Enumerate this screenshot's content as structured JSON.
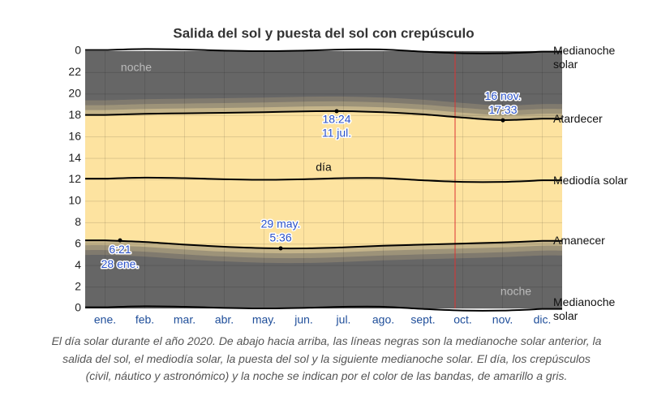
{
  "chart_data": {
    "type": "daylight",
    "title": "Salida del sol y puesta del sol con crepúsculo",
    "categories": [
      "ene.",
      "feb.",
      "mar.",
      "abr.",
      "may.",
      "jun.",
      "jul.",
      "ago.",
      "sept.",
      "oct.",
      "nov.",
      "dic."
    ],
    "ylim": [
      0,
      24
    ],
    "yticks": [
      0,
      2,
      4,
      6,
      8,
      10,
      12,
      14,
      16,
      18,
      20,
      22,
      {
        "value": 24,
        "label": "0"
      }
    ],
    "grid": true,
    "series": [
      {
        "name": "Medianoche solar",
        "color": "#000000",
        "values": [
          24.1,
          24.2,
          24.15,
          24.05,
          24.0,
          24.05,
          24.15,
          24.15,
          23.95,
          23.8,
          23.8,
          23.95
        ]
      },
      {
        "name": "Atardecer",
        "color": "#000000",
        "values": [
          18.05,
          18.15,
          18.2,
          18.25,
          18.3,
          18.38,
          18.4,
          18.3,
          18.1,
          17.8,
          17.57,
          17.7
        ]
      },
      {
        "name": "Mediodía solar",
        "color": "#000000",
        "values": [
          12.1,
          12.2,
          12.15,
          12.05,
          12.0,
          12.05,
          12.15,
          12.15,
          11.95,
          11.8,
          11.8,
          11.95
        ]
      },
      {
        "name": "Amanecer",
        "color": "#000000",
        "values": [
          6.35,
          6.2,
          5.95,
          5.75,
          5.62,
          5.6,
          5.7,
          5.85,
          5.95,
          6.05,
          6.15,
          6.3
        ]
      },
      {
        "name": "Medianoche solar",
        "color": "#000000",
        "values": [
          0.1,
          0.2,
          0.15,
          0.05,
          0.0,
          0.05,
          0.15,
          0.15,
          -0.05,
          -0.2,
          -0.2,
          -0.05
        ]
      }
    ],
    "annotations": [
      {
        "time": "6:21",
        "date": "28 ene.",
        "value": 6.35
      },
      {
        "date": "29 may.",
        "time": "5:36",
        "value": 5.6
      },
      {
        "time": "18:24",
        "date": "11 jul.",
        "value": 18.4
      },
      {
        "date": "16 nov.",
        "time": "17:33",
        "value": 17.55
      }
    ],
    "labels": {
      "day": "día",
      "night": "noche"
    },
    "caption": "El día solar durante el año 2020. De abajo hacia arriba, las líneas negras son la medianoche solar anterior, la salida del sol, el mediodía solar, la puesta del sol y la siguiente medianoche solar. El día, los crepúsculos (civil, náutico y astronómico) y la noche se indican por el color de las bandas, de amarillo a gris."
  }
}
